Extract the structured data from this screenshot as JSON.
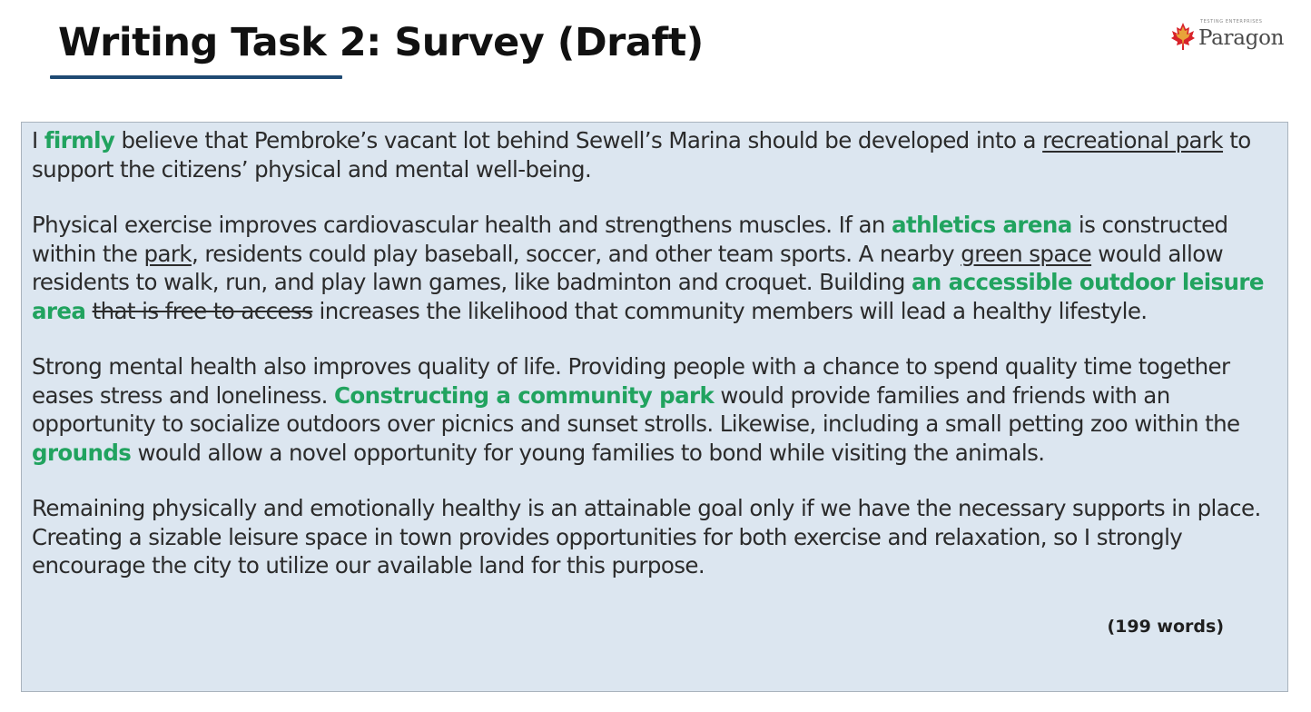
{
  "slide": {
    "title": "Writing Task 2: Survey (Draft)"
  },
  "logo": {
    "name": "Paragon",
    "tagline": "TESTING ENTERPRISES",
    "icon": "maple-leaf-icon",
    "accent_color": "#d8232a"
  },
  "essay": {
    "p1": {
      "s1": "I ",
      "s2": "firmly",
      "s3": " believe that Pembroke’s vacant lot behind Sewell’s Marina should be developed into a ",
      "s4": "recreational park",
      "s5": " to support the citizens’ physical and mental well-being."
    },
    "p2": {
      "s1": "Physical exercise improves cardiovascular health and strengthens muscles. If an ",
      "s2": "athletics arena",
      "s3": " is constructed within the ",
      "s4": "park",
      "s5": ", residents could play baseball, soccer, and other team sports. A nearby ",
      "s6": "green space",
      "s7": " would allow residents to walk, run, and play lawn games, like badminton and croquet. Building ",
      "s8": "an accessible outdoor leisure area",
      "s9": " ",
      "s10": "that is free to access",
      "s11": " increases the likelihood that community members will lead a healthy lifestyle."
    },
    "p3": {
      "s1": "Strong mental health also improves quality of life. Providing people with a chance to spend quality time together eases stress and loneliness. ",
      "s2": "Constructing a community park",
      "s3": " would provide families and friends with an opportunity to socialize outdoors over picnics and sunset strolls. Likewise, including a small petting zoo within the ",
      "s4": "grounds",
      "s5": " would allow a novel opportunity for young families to bond while visiting the animals."
    },
    "p4": {
      "s1": "Remaining physically and emotionally healthy is an attainable goal only if we have the necessary supports in place. Creating a sizable leisure space in town provides opportunities for both exercise and relaxation, so I strongly encourage the city to utilize our available land for this purpose."
    },
    "word_count": "(199 words)"
  },
  "colors": {
    "highlight": "#21a35f",
    "box_background": "#dce6f0",
    "title_underline": "#1f4a73"
  }
}
